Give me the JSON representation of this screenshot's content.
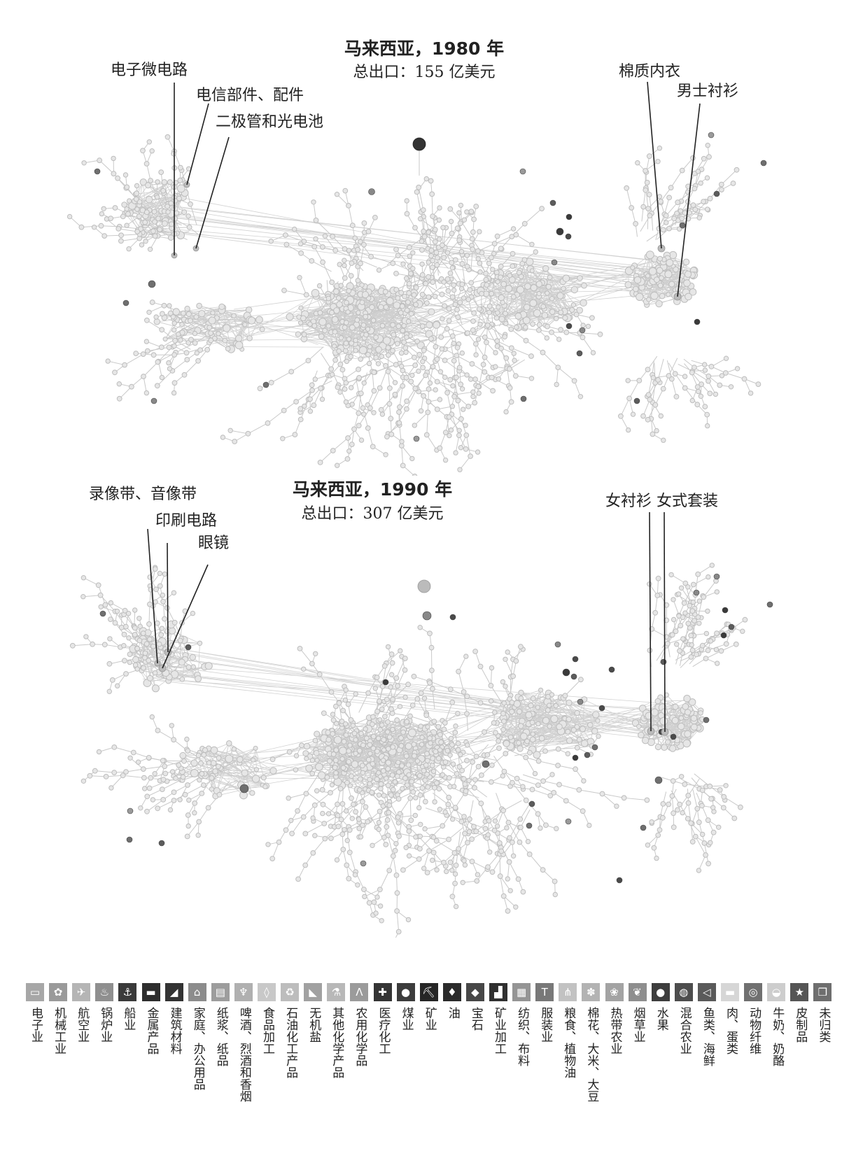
{
  "panels": [
    {
      "id": "1980",
      "title": "马来西亚，1980 年",
      "subtitle": "总出口：155 亿美元",
      "callouts": [
        "电子微电路",
        "电信部件、配件",
        "二极管和光电池",
        "棉质内衣",
        "男士衬衫"
      ]
    },
    {
      "id": "1990",
      "title": "马来西亚，1990 年",
      "subtitle": "总出口：307 亿美元",
      "callouts": [
        "录像带、音像带",
        "印刷电路",
        "眼镜",
        "女衬衫 女式套装"
      ]
    }
  ],
  "legend": [
    {
      "label": "电子业",
      "color": "#a7a7a7",
      "icon": "monitor-icon",
      "glyph": "▭"
    },
    {
      "label": "机械工业",
      "color": "#9a9a9a",
      "icon": "gears-icon",
      "glyph": "✿"
    },
    {
      "label": "航空业",
      "color": "#b5b5b5",
      "icon": "airplane-icon",
      "glyph": "✈"
    },
    {
      "label": "锅炉业",
      "color": "#8f8f8f",
      "icon": "flame-icon",
      "glyph": "♨"
    },
    {
      "label": "船业",
      "color": "#3a3a3a",
      "icon": "anchor-icon",
      "glyph": "⚓"
    },
    {
      "label": "金属产品",
      "color": "#2e2e2e",
      "icon": "anvil-icon",
      "glyph": "▬"
    },
    {
      "label": "建筑材料",
      "color": "#333333",
      "icon": "brick-icon",
      "glyph": "◢"
    },
    {
      "label": "家庭、办公用品",
      "color": "#8c8c8c",
      "icon": "house-icon",
      "glyph": "⌂"
    },
    {
      "label": "纸浆、纸品",
      "color": "#9d9d9d",
      "icon": "paper-icon",
      "glyph": "▤"
    },
    {
      "label": "啤酒、烈酒和香烟",
      "color": "#b0b0b0",
      "icon": "glass-icon",
      "glyph": "♆"
    },
    {
      "label": "食品加工",
      "color": "#c8c8c8",
      "icon": "bottle-icon",
      "glyph": "◊"
    },
    {
      "label": "石油化工产品",
      "color": "#bdbdbd",
      "icon": "recycle-icon",
      "glyph": "♻"
    },
    {
      "label": "无机盐",
      "color": "#a1a1a1",
      "icon": "shaker-icon",
      "glyph": "◣"
    },
    {
      "label": "其他化学产品",
      "color": "#b8b8b8",
      "icon": "flask-icon",
      "glyph": "⚗"
    },
    {
      "label": "农用化学品",
      "color": "#9b9b9b",
      "icon": "crops-icon",
      "glyph": "Ʌ"
    },
    {
      "label": "医疗化工",
      "color": "#353535",
      "icon": "medical-cross-icon",
      "glyph": "✚"
    },
    {
      "label": "煤业",
      "color": "#3c3c3c",
      "icon": "coal-icon",
      "glyph": "●"
    },
    {
      "label": "矿业",
      "color": "#262626",
      "icon": "pickaxe-icon",
      "glyph": "⛏"
    },
    {
      "label": "油",
      "color": "#2b2b2b",
      "icon": "oil-drop-icon",
      "glyph": "♦"
    },
    {
      "label": "宝石",
      "color": "#474747",
      "icon": "diamond-icon",
      "glyph": "◆"
    },
    {
      "label": "矿业加工",
      "color": "#303030",
      "icon": "factory-icon",
      "glyph": "▟"
    },
    {
      "label": "纺织、布料",
      "color": "#959595",
      "icon": "fabric-icon",
      "glyph": "▦"
    },
    {
      "label": "服装业",
      "color": "#787878",
      "icon": "shirt-icon",
      "glyph": "T"
    },
    {
      "label": "粮食、植物油",
      "color": "#c2c2c2",
      "icon": "wheat-icon",
      "glyph": "⋔"
    },
    {
      "label": "棉花、大米、大豆",
      "color": "#b3b3b3",
      "icon": "cotton-icon",
      "glyph": "✽"
    },
    {
      "label": "热带农业",
      "color": "#a3a3a3",
      "icon": "flower-icon",
      "glyph": "❀"
    },
    {
      "label": "烟草业",
      "color": "#8e8e8e",
      "icon": "leaf-icon",
      "glyph": "❦"
    },
    {
      "label": "水果",
      "color": "#3e3e3e",
      "icon": "apple-icon",
      "glyph": "●"
    },
    {
      "label": "混合农业",
      "color": "#4d4d4d",
      "icon": "tomato-icon",
      "glyph": "◍"
    },
    {
      "label": "鱼类、海鲜",
      "color": "#5a5a5a",
      "icon": "fish-icon",
      "glyph": "◁"
    },
    {
      "label": "肉、蛋类",
      "color": "#d6d6d6",
      "icon": "cow-icon",
      "glyph": "▬"
    },
    {
      "label": "动物纤维",
      "color": "#707070",
      "icon": "yarn-icon",
      "glyph": "◎"
    },
    {
      "label": "牛奶、奶酪",
      "color": "#cdcdcd",
      "icon": "cheese-icon",
      "glyph": "◒"
    },
    {
      "label": "皮制品",
      "color": "#555555",
      "icon": "star-icon",
      "glyph": "★"
    },
    {
      "label": "未归类",
      "color": "#6e6e6e",
      "icon": "box-icon",
      "glyph": "❒"
    }
  ]
}
